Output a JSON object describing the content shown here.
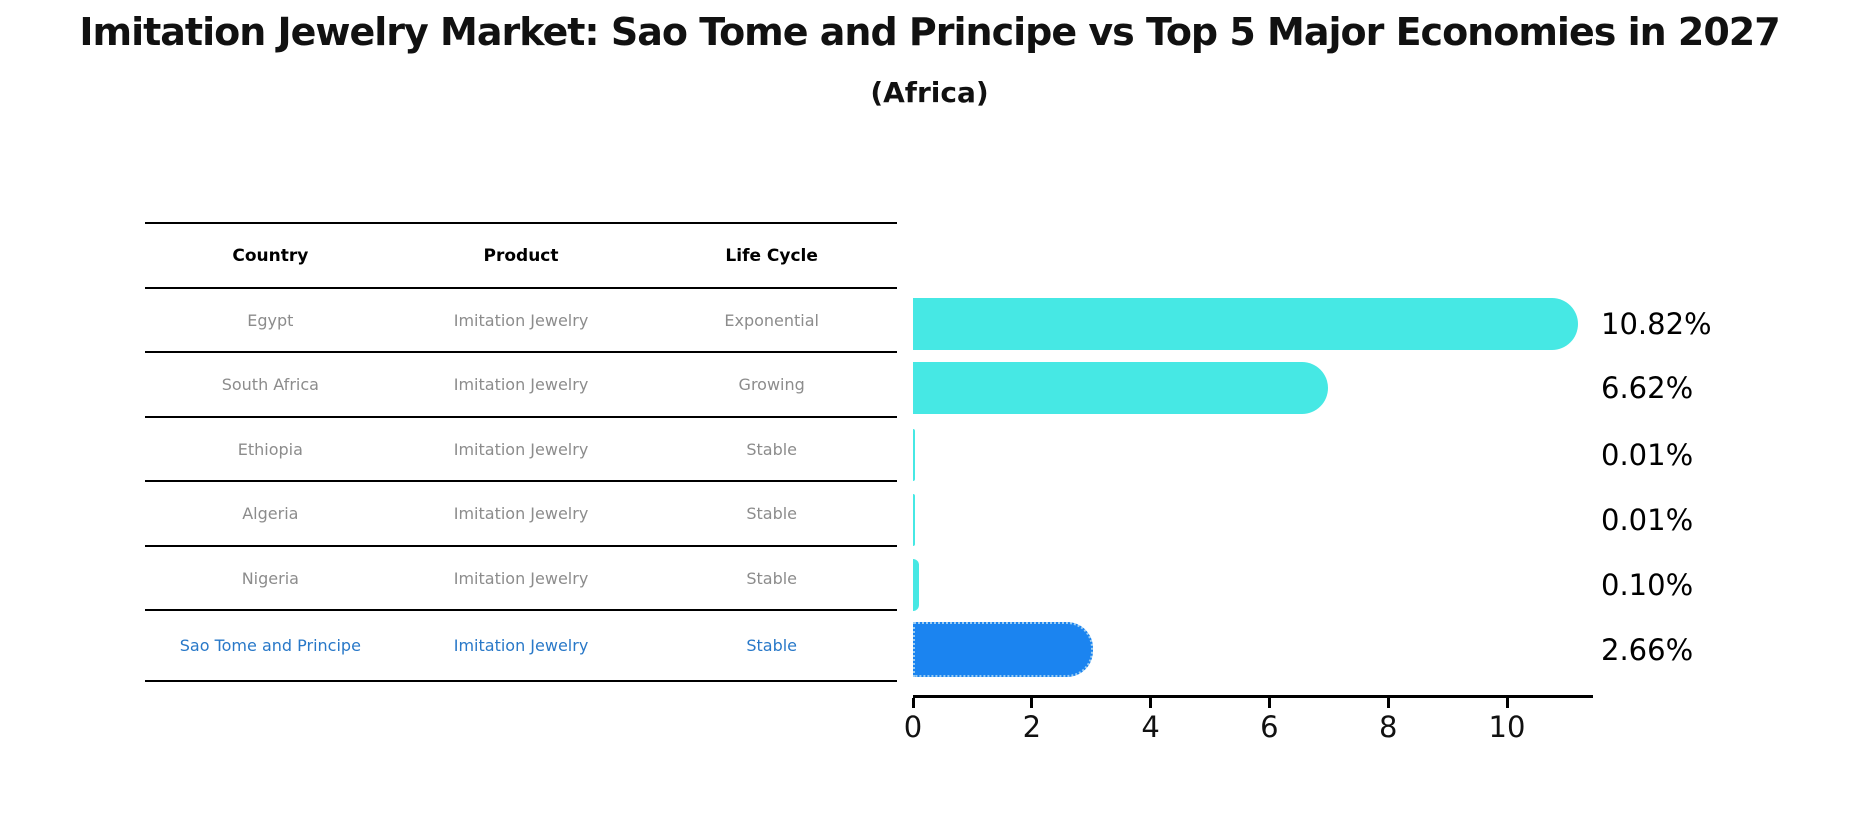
{
  "title": "Imitation Jewelry Market: Sao Tome and Principe vs Top 5 Major Economies in 2027",
  "subtitle": "(Africa)",
  "table": {
    "headers": [
      "Country",
      "Product",
      "Life Cycle"
    ],
    "rows": [
      {
        "country": "Egypt",
        "product": "Imitation Jewelry",
        "life_cycle": "Exponential",
        "highlight": false
      },
      {
        "country": "South Africa",
        "product": "Imitation Jewelry",
        "life_cycle": "Growing",
        "highlight": false
      },
      {
        "country": "Ethiopia",
        "product": "Imitation Jewelry",
        "life_cycle": "Stable",
        "highlight": false
      },
      {
        "country": "Algeria",
        "product": "Imitation Jewelry",
        "life_cycle": "Stable",
        "highlight": false
      },
      {
        "country": "Nigeria",
        "product": "Imitation Jewelry",
        "life_cycle": "Stable",
        "highlight": false
      },
      {
        "country": "Sao Tome and Principe",
        "product": "Imitation Jewelry",
        "life_cycle": "Stable",
        "highlight": true
      }
    ]
  },
  "chart_data": {
    "type": "bar",
    "orientation": "horizontal",
    "categories": [
      "Egypt",
      "South Africa",
      "Ethiopia",
      "Algeria",
      "Nigeria",
      "Sao Tome and Principe"
    ],
    "values": [
      10.82,
      6.62,
      0.01,
      0.01,
      0.1,
      2.66
    ],
    "value_labels": [
      "10.82%",
      "6.62%",
      "0.01%",
      "0.01%",
      "0.10%",
      "2.66%"
    ],
    "x_ticks": [
      0,
      2,
      4,
      6,
      8,
      10
    ],
    "xlim": [
      0,
      11.4
    ],
    "grid": false,
    "legend": "none",
    "bar_color": "#46e8e4",
    "highlight_color": "#1b84f0",
    "highlight_index": 5
  },
  "colors": {
    "row_text": "#8c8c8c",
    "header_text": "#000000",
    "highlight_text": "#2878c8",
    "value_text": "#000000",
    "line_color": "#000000"
  }
}
